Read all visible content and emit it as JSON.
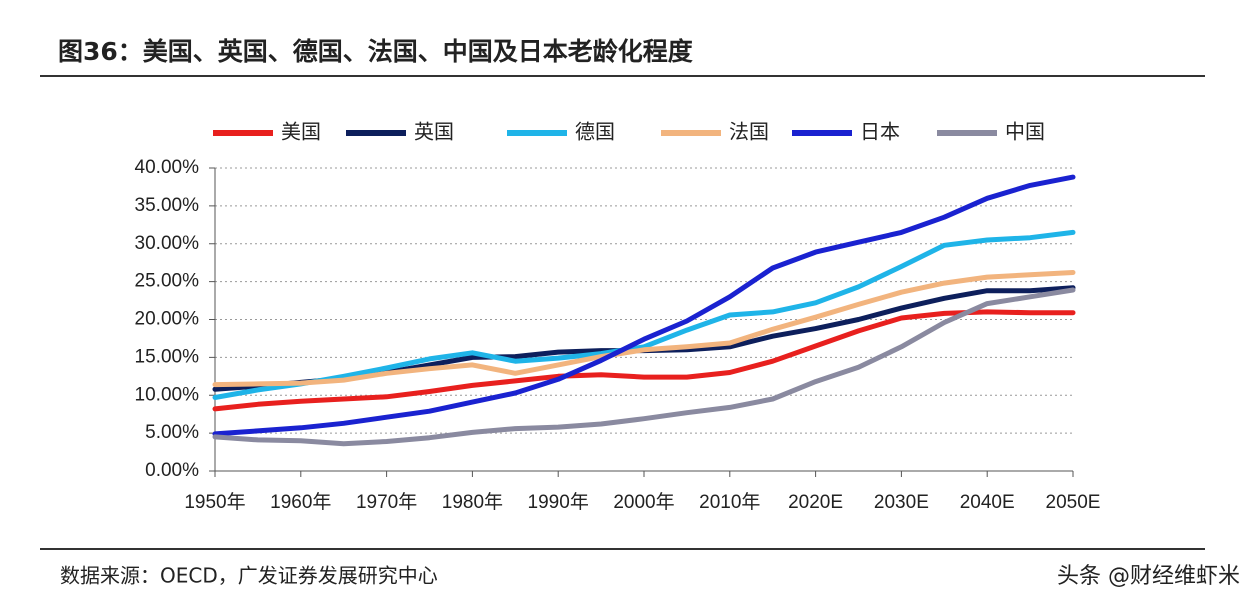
{
  "chart_data": {
    "type": "line",
    "title": "图36：美国、英国、德国、法国、中国及日本老龄化程度",
    "source": "数据来源：OECD，广发证券发展研究中心",
    "watermark": "头条 @财经维虾米",
    "x": [
      1950,
      1955,
      1960,
      1965,
      1970,
      1975,
      1980,
      1985,
      1990,
      1995,
      2000,
      2005,
      2010,
      2015,
      2020,
      2025,
      2030,
      2035,
      2040,
      2045,
      2050
    ],
    "xlim": [
      1950,
      2050
    ],
    "xticks": [
      {
        "value": 1950,
        "label": "1950年"
      },
      {
        "value": 1960,
        "label": "1960年"
      },
      {
        "value": 1970,
        "label": "1970年"
      },
      {
        "value": 1980,
        "label": "1980年"
      },
      {
        "value": 1990,
        "label": "1990年"
      },
      {
        "value": 2000,
        "label": "2000年"
      },
      {
        "value": 2010,
        "label": "2010年"
      },
      {
        "value": 2020,
        "label": "2020E"
      },
      {
        "value": 2030,
        "label": "2030E"
      },
      {
        "value": 2040,
        "label": "2040E"
      },
      {
        "value": 2050,
        "label": "2050E"
      }
    ],
    "ylim": [
      0,
      40
    ],
    "yticks": [
      {
        "value": 0,
        "label": "0.00%"
      },
      {
        "value": 5,
        "label": "5.00%"
      },
      {
        "value": 10,
        "label": "10.00%"
      },
      {
        "value": 15,
        "label": "15.00%"
      },
      {
        "value": 20,
        "label": "20.00%"
      },
      {
        "value": 25,
        "label": "25.00%"
      },
      {
        "value": 30,
        "label": "30.00%"
      },
      {
        "value": 35,
        "label": "35.00%"
      },
      {
        "value": 40,
        "label": "40.00%"
      }
    ],
    "grid": true,
    "legend": "top",
    "series": [
      {
        "name": "美国",
        "color": "#e8201e",
        "values": [
          8.2,
          8.8,
          9.2,
          9.5,
          9.8,
          10.5,
          11.3,
          11.9,
          12.5,
          12.7,
          12.4,
          12.4,
          13.0,
          14.5,
          16.5,
          18.5,
          20.2,
          20.8,
          21.0,
          20.9,
          20.9
        ]
      },
      {
        "name": "英国",
        "color": "#0d1f5c",
        "values": [
          10.8,
          11.2,
          11.7,
          12.2,
          13.0,
          14.0,
          15.0,
          15.1,
          15.7,
          15.9,
          15.9,
          16.0,
          16.4,
          17.8,
          18.8,
          20.0,
          21.5,
          22.8,
          23.8,
          23.8,
          24.2
        ]
      },
      {
        "name": "德国",
        "color": "#1fb4e8",
        "values": [
          9.7,
          10.7,
          11.5,
          12.5,
          13.6,
          14.8,
          15.6,
          14.5,
          14.9,
          15.5,
          16.4,
          18.6,
          20.6,
          21.0,
          22.2,
          24.3,
          27.0,
          29.8,
          30.5,
          30.8,
          31.5
        ]
      },
      {
        "name": "法国",
        "color": "#f2b47e",
        "values": [
          11.4,
          11.5,
          11.6,
          12.0,
          12.9,
          13.5,
          14.0,
          12.9,
          14.0,
          15.1,
          16.0,
          16.4,
          16.9,
          18.7,
          20.3,
          22.0,
          23.6,
          24.8,
          25.6,
          25.9,
          26.2
        ]
      },
      {
        "name": "日本",
        "color": "#1a22d0",
        "values": [
          4.9,
          5.3,
          5.7,
          6.3,
          7.1,
          7.9,
          9.1,
          10.3,
          12.1,
          14.6,
          17.4,
          19.8,
          23.0,
          26.8,
          28.9,
          30.2,
          31.5,
          33.5,
          36.0,
          37.7,
          38.8
        ]
      },
      {
        "name": "中国",
        "color": "#8a8aa0",
        "values": [
          4.5,
          4.1,
          4.0,
          3.6,
          3.9,
          4.4,
          5.1,
          5.6,
          5.8,
          6.2,
          6.9,
          7.7,
          8.4,
          9.5,
          11.8,
          13.7,
          16.4,
          19.6,
          22.1,
          23.0,
          23.9
        ]
      }
    ]
  }
}
